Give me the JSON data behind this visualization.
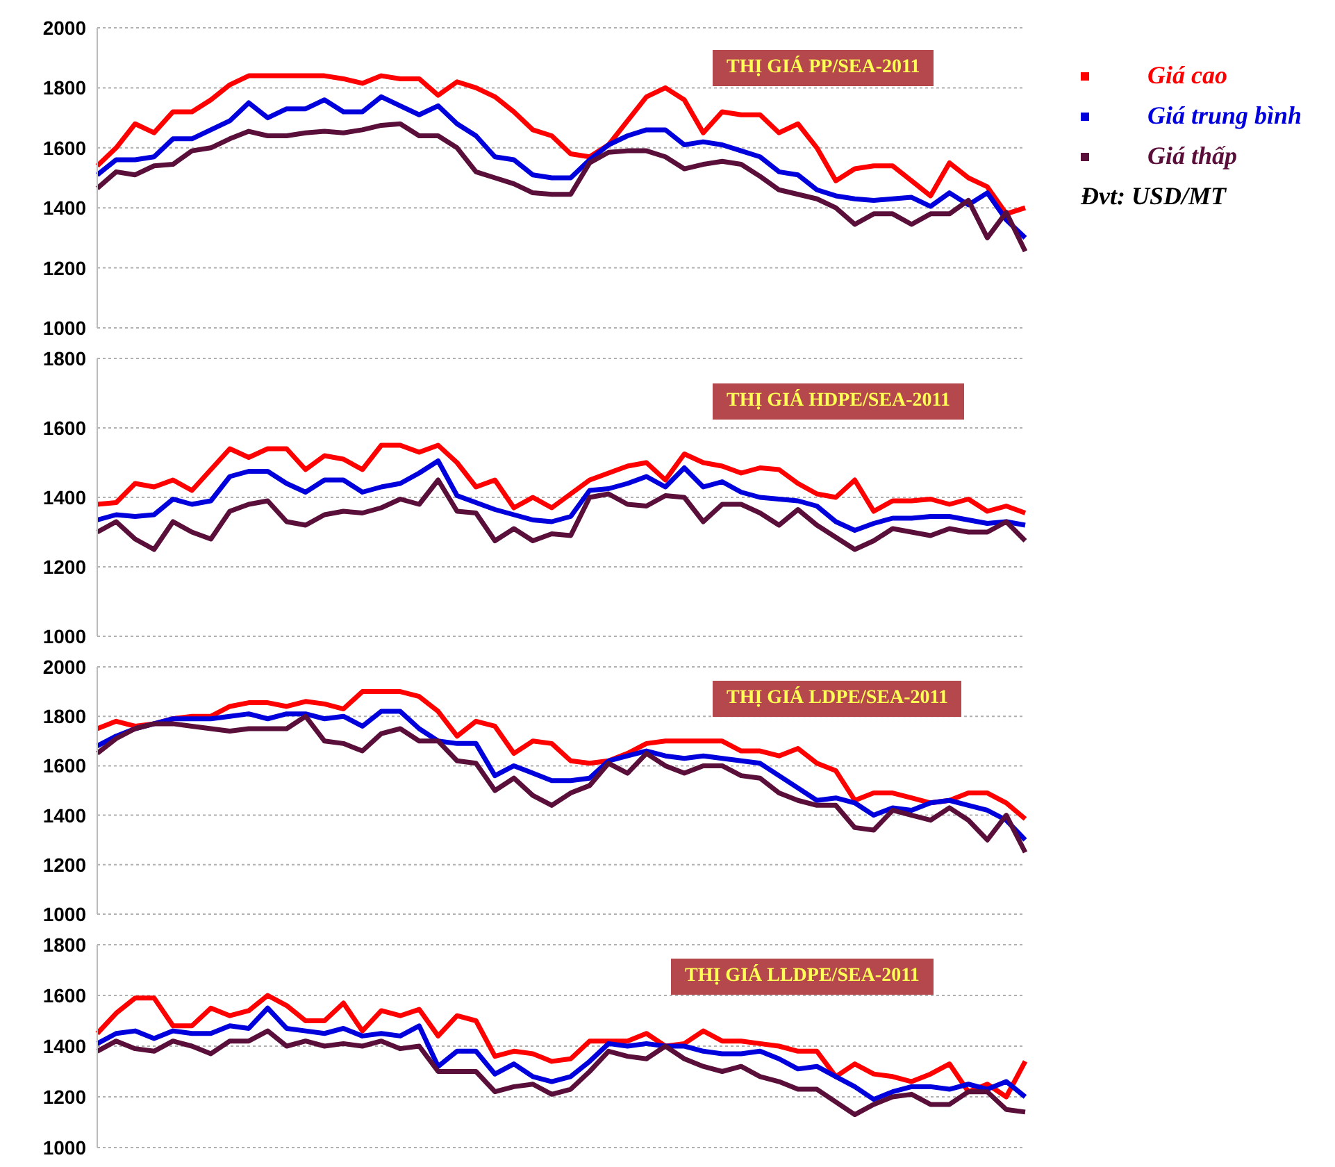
{
  "chart_data": [
    {
      "type": "line",
      "title": "THỊ GIÁ PP/SEA-2011",
      "categories": [
        null,
        null,
        null,
        null,
        null,
        null,
        null,
        null,
        null,
        null,
        null,
        null,
        null,
        null,
        null,
        null,
        null,
        null,
        null,
        null,
        null,
        null,
        null,
        null,
        null,
        null,
        null,
        null,
        null,
        null,
        null,
        null,
        null,
        null,
        null,
        null,
        null,
        null,
        null,
        null,
        null,
        null,
        null,
        null,
        null,
        null,
        null,
        null,
        null,
        null
      ],
      "ylim": [
        1000,
        2000
      ],
      "yticks": [
        1000,
        1200,
        1400,
        1600,
        1800,
        2000
      ],
      "grid": "y",
      "legend": "right",
      "marker": "none",
      "line_style": "solid",
      "tick_labels": "y",
      "annotations": [
        "Đvt: USD/MT"
      ],
      "series": [
        {
          "name": "Giá cao",
          "color": "#ff0000",
          "values": [
            1540,
            1600,
            1680,
            1650,
            1720,
            1720,
            1760,
            1810,
            1840,
            1840,
            1840,
            1840,
            1840,
            1830,
            1815,
            1840,
            1830,
            1830,
            1775,
            1820,
            1800,
            1770,
            1720,
            1660,
            1640,
            1580,
            1570,
            1610,
            1690,
            1770,
            1800,
            1760,
            1650,
            1720,
            1710,
            1710,
            1650,
            1680,
            1600,
            1490,
            1530,
            1540,
            1540,
            1490,
            1440,
            1550,
            1500,
            1470,
            1380,
            1400
          ]
        },
        {
          "name": "Giá trung bình",
          "color": "#0000dd",
          "values": [
            1510,
            1560,
            1560,
            1570,
            1630,
            1630,
            1660,
            1690,
            1750,
            1700,
            1730,
            1730,
            1760,
            1720,
            1720,
            1770,
            1740,
            1710,
            1740,
            1680,
            1640,
            1570,
            1560,
            1510,
            1500,
            1500,
            1560,
            1610,
            1640,
            1660,
            1660,
            1610,
            1620,
            1610,
            1590,
            1570,
            1520,
            1510,
            1460,
            1440,
            1430,
            1425,
            1430,
            1435,
            1405,
            1450,
            1410,
            1450,
            1360,
            1300
          ]
        },
        {
          "name": "Giá thấp",
          "color": "#5a0f3a",
          "values": [
            1465,
            1520,
            1510,
            1540,
            1545,
            1590,
            1600,
            1630,
            1655,
            1640,
            1640,
            1650,
            1655,
            1650,
            1660,
            1675,
            1680,
            1640,
            1640,
            1600,
            1520,
            1500,
            1480,
            1450,
            1445,
            1445,
            1550,
            1585,
            1590,
            1590,
            1570,
            1530,
            1545,
            1555,
            1545,
            1505,
            1460,
            1445,
            1430,
            1400,
            1345,
            1380,
            1380,
            1345,
            1380,
            1380,
            1425,
            1300,
            1385,
            1255
          ]
        }
      ]
    },
    {
      "type": "line",
      "title": "THỊ GIÁ HDPE/SEA-2011",
      "categories": [
        null,
        null,
        null,
        null,
        null,
        null,
        null,
        null,
        null,
        null,
        null,
        null,
        null,
        null,
        null,
        null,
        null,
        null,
        null,
        null,
        null,
        null,
        null,
        null,
        null,
        null,
        null,
        null,
        null,
        null,
        null,
        null,
        null,
        null,
        null,
        null,
        null,
        null,
        null,
        null,
        null,
        null,
        null,
        null,
        null,
        null,
        null,
        null,
        null,
        null
      ],
      "ylim": [
        1000,
        1800
      ],
      "yticks": [
        1000,
        1200,
        1400,
        1600,
        1800
      ],
      "grid": "y",
      "marker": "none",
      "line_style": "solid",
      "tick_labels": "y",
      "series": [
        {
          "color": "#ff0000",
          "values": [
            1380,
            1385,
            1440,
            1430,
            1450,
            1420,
            1480,
            1540,
            1515,
            1540,
            1540,
            1480,
            1520,
            1510,
            1480,
            1550,
            1550,
            1530,
            1550,
            1500,
            1430,
            1450,
            1370,
            1400,
            1370,
            1410,
            1450,
            1470,
            1490,
            1500,
            1450,
            1525,
            1500,
            1490,
            1470,
            1485,
            1480,
            1440,
            1410,
            1400,
            1450,
            1360,
            1390,
            1390,
            1395,
            1380,
            1395,
            1360,
            1375,
            1355
          ]
        },
        {
          "color": "#0000dd",
          "values": [
            1335,
            1350,
            1345,
            1350,
            1395,
            1380,
            1390,
            1460,
            1475,
            1475,
            1440,
            1415,
            1450,
            1450,
            1415,
            1430,
            1440,
            1470,
            1505,
            1405,
            1385,
            1365,
            1350,
            1335,
            1330,
            1345,
            1420,
            1425,
            1440,
            1460,
            1430,
            1485,
            1430,
            1445,
            1415,
            1400,
            1395,
            1390,
            1375,
            1330,
            1305,
            1325,
            1340,
            1340,
            1345,
            1345,
            1335,
            1325,
            1330,
            1320
          ]
        },
        {
          "color": "#5a0f3a",
          "values": [
            1300,
            1330,
            1280,
            1250,
            1330,
            1300,
            1280,
            1360,
            1380,
            1390,
            1330,
            1320,
            1350,
            1360,
            1355,
            1370,
            1395,
            1380,
            1450,
            1360,
            1355,
            1275,
            1310,
            1275,
            1295,
            1290,
            1400,
            1410,
            1380,
            1375,
            1405,
            1400,
            1330,
            1380,
            1380,
            1355,
            1320,
            1365,
            1320,
            1285,
            1250,
            1275,
            1310,
            1300,
            1290,
            1310,
            1300,
            1300,
            1330,
            1275
          ]
        }
      ]
    },
    {
      "type": "line",
      "title": "THỊ GIÁ LDPE/SEA-2011",
      "categories": [
        null,
        null,
        null,
        null,
        null,
        null,
        null,
        null,
        null,
        null,
        null,
        null,
        null,
        null,
        null,
        null,
        null,
        null,
        null,
        null,
        null,
        null,
        null,
        null,
        null,
        null,
        null,
        null,
        null,
        null,
        null,
        null,
        null,
        null,
        null,
        null,
        null,
        null,
        null,
        null,
        null,
        null,
        null,
        null,
        null,
        null,
        null,
        null,
        null,
        null
      ],
      "ylim": [
        1000,
        2000
      ],
      "yticks": [
        1000,
        1200,
        1400,
        1600,
        1800,
        2000
      ],
      "grid": "y",
      "marker": "none",
      "line_style": "solid",
      "tick_labels": "y",
      "series": [
        {
          "color": "#ff0000",
          "values": [
            1750,
            1780,
            1760,
            1770,
            1790,
            1800,
            1800,
            1840,
            1855,
            1855,
            1840,
            1860,
            1850,
            1830,
            1900,
            1900,
            1900,
            1880,
            1820,
            1720,
            1780,
            1760,
            1650,
            1700,
            1690,
            1620,
            1610,
            1620,
            1650,
            1690,
            1700,
            1700,
            1700,
            1700,
            1660,
            1660,
            1640,
            1670,
            1610,
            1580,
            1460,
            1490,
            1490,
            1470,
            1450,
            1460,
            1490,
            1490,
            1450,
            1385
          ]
        },
        {
          "color": "#0000dd",
          "values": [
            1680,
            1720,
            1750,
            1770,
            1790,
            1790,
            1790,
            1800,
            1810,
            1790,
            1810,
            1810,
            1790,
            1800,
            1760,
            1820,
            1820,
            1750,
            1700,
            1690,
            1690,
            1560,
            1600,
            1570,
            1540,
            1540,
            1550,
            1620,
            1640,
            1660,
            1640,
            1630,
            1640,
            1630,
            1620,
            1610,
            1560,
            1510,
            1460,
            1470,
            1450,
            1400,
            1430,
            1420,
            1450,
            1460,
            1440,
            1420,
            1380,
            1300
          ]
        },
        {
          "color": "#5a0f3a",
          "values": [
            1650,
            1710,
            1750,
            1770,
            1770,
            1760,
            1750,
            1740,
            1750,
            1750,
            1750,
            1800,
            1700,
            1690,
            1660,
            1730,
            1750,
            1700,
            1700,
            1620,
            1610,
            1500,
            1550,
            1480,
            1440,
            1490,
            1520,
            1610,
            1570,
            1650,
            1600,
            1570,
            1600,
            1600,
            1560,
            1550,
            1490,
            1460,
            1440,
            1440,
            1350,
            1340,
            1420,
            1400,
            1380,
            1430,
            1380,
            1300,
            1400,
            1250
          ]
        }
      ]
    },
    {
      "type": "line",
      "title": "THỊ GIÁ LLDPE/SEA-2011",
      "categories": [
        null,
        null,
        null,
        null,
        null,
        null,
        null,
        null,
        null,
        null,
        null,
        null,
        null,
        null,
        null,
        null,
        null,
        null,
        null,
        null,
        null,
        null,
        null,
        null,
        null,
        null,
        null,
        null,
        null,
        null,
        null,
        null,
        null,
        null,
        null,
        null,
        null,
        null,
        null,
        null,
        null,
        null,
        null,
        null,
        null,
        null,
        null,
        null,
        null,
        null
      ],
      "ylim": [
        1000,
        1800
      ],
      "yticks": [
        1000,
        1200,
        1400,
        1600,
        1800
      ],
      "grid": "y",
      "marker": "none",
      "line_style": "solid",
      "tick_labels": "y",
      "series": [
        {
          "color": "#ff0000",
          "values": [
            1450,
            1530,
            1590,
            1590,
            1480,
            1480,
            1550,
            1520,
            1540,
            1600,
            1560,
            1500,
            1500,
            1570,
            1460,
            1540,
            1520,
            1545,
            1440,
            1520,
            1500,
            1360,
            1380,
            1370,
            1340,
            1350,
            1420,
            1420,
            1420,
            1450,
            1400,
            1410,
            1460,
            1420,
            1420,
            1410,
            1400,
            1380,
            1380,
            1280,
            1330,
            1290,
            1280,
            1260,
            1290,
            1330,
            1220,
            1250,
            1200,
            1340
          ]
        },
        {
          "color": "#0000dd",
          "values": [
            1410,
            1450,
            1460,
            1430,
            1460,
            1450,
            1450,
            1480,
            1470,
            1550,
            1470,
            1460,
            1450,
            1470,
            1440,
            1450,
            1440,
            1480,
            1320,
            1380,
            1380,
            1290,
            1330,
            1280,
            1260,
            1280,
            1340,
            1410,
            1400,
            1410,
            1400,
            1400,
            1380,
            1370,
            1370,
            1380,
            1350,
            1310,
            1320,
            1280,
            1240,
            1190,
            1220,
            1240,
            1240,
            1230,
            1250,
            1230,
            1260,
            1200
          ]
        },
        {
          "color": "#5a0f3a",
          "values": [
            1380,
            1420,
            1390,
            1380,
            1420,
            1400,
            1370,
            1420,
            1420,
            1460,
            1400,
            1420,
            1400,
            1410,
            1400,
            1420,
            1390,
            1400,
            1300,
            1300,
            1300,
            1220,
            1240,
            1250,
            1210,
            1230,
            1300,
            1380,
            1360,
            1350,
            1400,
            1350,
            1320,
            1300,
            1320,
            1280,
            1260,
            1230,
            1230,
            1180,
            1130,
            1170,
            1200,
            1210,
            1170,
            1170,
            1220,
            1220,
            1150,
            1140
          ]
        }
      ]
    }
  ]
}
